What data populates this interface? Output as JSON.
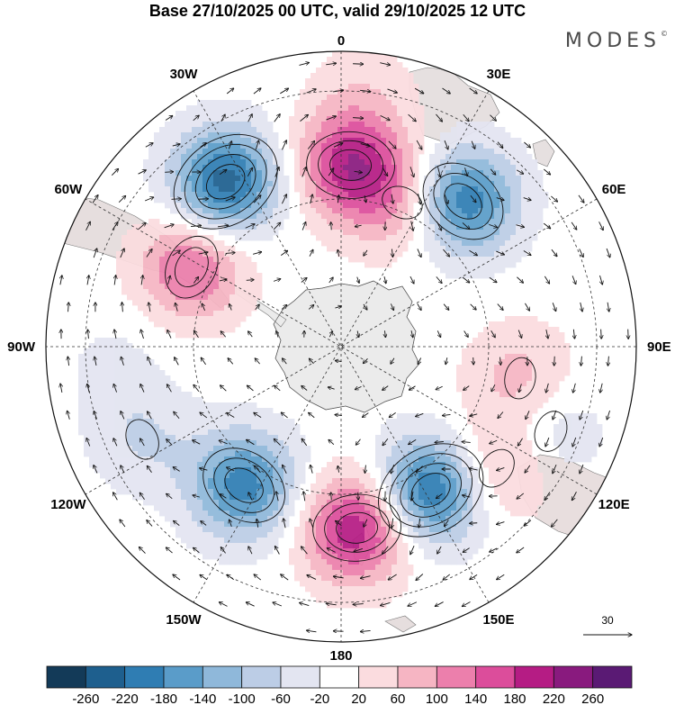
{
  "title": "Base 27/10/2025 00 UTC, valid 29/10/2025 12 UTC",
  "brand": {
    "text": "MODES",
    "mark": "©"
  },
  "longitude_labels": [
    "0",
    "30E",
    "60E",
    "90E",
    "120E",
    "150E",
    "180",
    "150W",
    "120W",
    "90W",
    "60W",
    "30W"
  ],
  "reference_vector": {
    "value": "30"
  },
  "colorbar": {
    "ticks": [
      "-260",
      "-220",
      "-180",
      "-140",
      "-100",
      "-60",
      "-20",
      "20",
      "60",
      "100",
      "140",
      "180",
      "220",
      "260"
    ],
    "colors": [
      "#133a58",
      "#1e5f8e",
      "#2f7db3",
      "#5a9cc9",
      "#8fb8da",
      "#bccde6",
      "#e3e5f1",
      "#ffffff",
      "#fbdcdf",
      "#f6b5c3",
      "#ec7fac",
      "#dc4d9b",
      "#b51c84",
      "#891a7e",
      "#5a1a74"
    ]
  },
  "map_colors": {
    "land": "#ebebeb",
    "graticule": "#333333",
    "contour": "#111111",
    "arrow": "#111111"
  },
  "anomaly_centers": [
    {
      "lon": 3,
      "lat": -52,
      "value": 200
    },
    {
      "lon": 23,
      "lat": -58,
      "value": 100
    },
    {
      "lon": 40,
      "lat": -50,
      "value": -220
    },
    {
      "lon": 100,
      "lat": -52,
      "value": 80
    },
    {
      "lon": 112,
      "lat": -40,
      "value": -60
    },
    {
      "lon": 128,
      "lat": -48,
      "value": 100
    },
    {
      "lon": 148,
      "lat": -55,
      "value": -240
    },
    {
      "lon": 175,
      "lat": -52,
      "value": 220
    },
    {
      "lon": -145,
      "lat": -55,
      "value": -200
    },
    {
      "lon": -115,
      "lat": -42,
      "value": -60
    },
    {
      "lon": -62,
      "lat": -55,
      "value": 150
    },
    {
      "lon": -35,
      "lat": -47,
      "value": -240
    },
    {
      "lon": 5,
      "lat": -30,
      "value": 40
    },
    {
      "lon": -95,
      "lat": -40,
      "value": -30
    }
  ]
}
